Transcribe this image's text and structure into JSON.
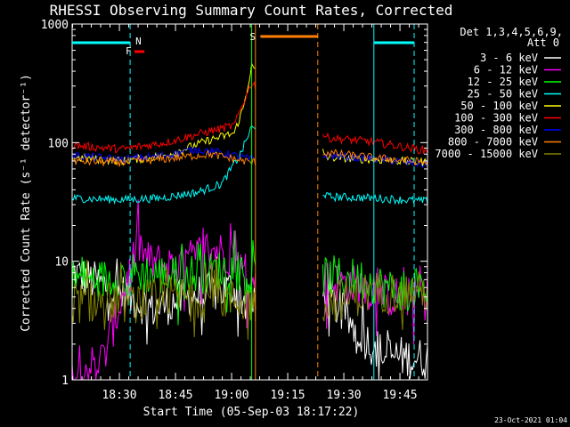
{
  "chart_data": {
    "type": "line",
    "title": "RHESSI Observing Summary Count Rates, Corrected",
    "xlabel": "Start Time (05-Sep-03 18:17:22)",
    "ylabel": "Corrected Count Rate (s⁻¹ detector⁻¹)",
    "yscale": "log",
    "ylim": [
      1,
      1000
    ],
    "xlim": [
      0,
      5700
    ],
    "x_unit": "seconds since 18:17:22",
    "xticks": [
      {
        "t": 758,
        "label": "18:30"
      },
      {
        "t": 1658,
        "label": "18:45"
      },
      {
        "t": 2558,
        "label": "19:00"
      },
      {
        "t": 3458,
        "label": "19:15"
      },
      {
        "t": 4358,
        "label": "19:30"
      },
      {
        "t": 5258,
        "label": "19:45"
      }
    ],
    "yticks": [
      {
        "v": 1,
        "label": "1"
      },
      {
        "v": 10,
        "label": "10"
      },
      {
        "v": 100,
        "label": "100"
      },
      {
        "v": 1000,
        "label": "1000"
      }
    ],
    "detectors_label": "Det 1,3,4,5,6,9,",
    "attenuator_label": "Att 0",
    "footer_date": "23-Oct-2021 01:04",
    "night_label": "N",
    "flare_label": "F",
    "saa_label": "S",
    "gaps": [
      [
        2940,
        4020
      ]
    ],
    "vlines": [
      {
        "t": 930,
        "color": "#00ffff",
        "style": "dashed"
      },
      {
        "t": 2880,
        "color": "#00ff00",
        "style": "solid"
      },
      {
        "t": 2940,
        "color": "#ff8000",
        "style": "solid"
      },
      {
        "t": 3940,
        "color": "#ff8000",
        "style": "dashed"
      },
      {
        "t": 4840,
        "color": "#00ffff",
        "style": "solid"
      },
      {
        "t": 5760,
        "color": "#00ffff",
        "style": "dashed"
      }
    ],
    "bars": [
      {
        "label": "N",
        "t0": 0,
        "t1": 930,
        "color": "#00ffff"
      },
      {
        "label": "N",
        "t0": 4840,
        "t1": 5760,
        "color": "#00ffff"
      },
      {
        "label": "F",
        "t0": 1000,
        "t1": 1160,
        "color": "#ff0000"
      },
      {
        "label": "S",
        "t0": 3020,
        "t1": 3940,
        "color": "#ff8000"
      }
    ],
    "series": [
      {
        "name": "3 - 6 keV",
        "color": "#ffffff",
        "key": [
          [
            0,
            8
          ],
          [
            600,
            6
          ],
          [
            1300,
            4
          ],
          [
            1900,
            5
          ],
          [
            2600,
            6
          ],
          [
            2850,
            4
          ],
          [
            4100,
            5
          ],
          [
            4600,
            2.5
          ],
          [
            5000,
            1.6
          ],
          [
            5700,
            1.5
          ]
        ]
      },
      {
        "name": "6 - 12 keV",
        "color": "#ff00ff",
        "key": [
          [
            0,
            1.1
          ],
          [
            500,
            1.5
          ],
          [
            950,
            9
          ],
          [
            1050,
            15
          ],
          [
            1200,
            10
          ],
          [
            1700,
            9
          ],
          [
            2200,
            13
          ],
          [
            2600,
            11
          ],
          [
            2850,
            6
          ],
          [
            4100,
            7
          ],
          [
            4700,
            6
          ],
          [
            5100,
            5
          ],
          [
            5700,
            5
          ]
        ]
      },
      {
        "name": "12 - 25 keV",
        "color": "#00ff00",
        "key": [
          [
            0,
            7
          ],
          [
            500,
            7
          ],
          [
            1000,
            8
          ],
          [
            1600,
            7.5
          ],
          [
            2200,
            8
          ],
          [
            2600,
            9
          ],
          [
            2850,
            7
          ],
          [
            4100,
            7.5
          ],
          [
            4700,
            7
          ],
          [
            5100,
            5.8
          ],
          [
            5700,
            5.5
          ]
        ]
      },
      {
        "name": "25 - 50 keV",
        "color": "#00ffff",
        "key": [
          [
            0,
            34
          ],
          [
            800,
            33
          ],
          [
            1400,
            34
          ],
          [
            2000,
            38
          ],
          [
            2400,
            45
          ],
          [
            2700,
            80
          ],
          [
            2880,
            135
          ],
          [
            4100,
            35
          ],
          [
            4900,
            34
          ],
          [
            5700,
            32
          ]
        ]
      },
      {
        "name": "50 - 100 keV",
        "color": "#ffff00",
        "key": [
          [
            0,
            75
          ],
          [
            800,
            70
          ],
          [
            1500,
            78
          ],
          [
            2200,
            105
          ],
          [
            2600,
            120
          ],
          [
            2750,
            200
          ],
          [
            2880,
            440
          ],
          [
            4100,
            75
          ],
          [
            4800,
            72
          ],
          [
            5700,
            68
          ]
        ]
      },
      {
        "name": "100 - 300 keV",
        "color": "#ff0000",
        "key": [
          [
            0,
            95
          ],
          [
            800,
            88
          ],
          [
            1500,
            100
          ],
          [
            2000,
            117
          ],
          [
            2600,
            140
          ],
          [
            2750,
            220
          ],
          [
            2880,
            320
          ],
          [
            4100,
            110
          ],
          [
            4800,
            102
          ],
          [
            5700,
            85
          ]
        ]
      },
      {
        "name": "300 - 800 keV",
        "color": "#0000ff",
        "key": [
          [
            0,
            78
          ],
          [
            800,
            72
          ],
          [
            1500,
            78
          ],
          [
            2000,
            88
          ],
          [
            2500,
            80
          ],
          [
            2880,
            72
          ],
          [
            4100,
            78
          ],
          [
            5000,
            72
          ],
          [
            5700,
            65
          ]
        ]
      },
      {
        "name": "800 - 7000 keV",
        "color": "#ff8000",
        "key": [
          [
            0,
            70
          ],
          [
            800,
            68
          ],
          [
            1500,
            73
          ],
          [
            2200,
            80
          ],
          [
            2880,
            68
          ],
          [
            4100,
            82
          ],
          [
            4800,
            75
          ],
          [
            5700,
            68
          ]
        ]
      },
      {
        "name": "7000 - 15000 keV",
        "color": "#808000",
        "key": [
          [
            0,
            4.5
          ],
          [
            1000,
            4.5
          ],
          [
            1600,
            5
          ],
          [
            2200,
            5
          ],
          [
            2850,
            4.5
          ],
          [
            4100,
            4.5
          ],
          [
            4800,
            5.5
          ],
          [
            5100,
            5.5
          ],
          [
            5700,
            5.5
          ]
        ]
      }
    ]
  }
}
